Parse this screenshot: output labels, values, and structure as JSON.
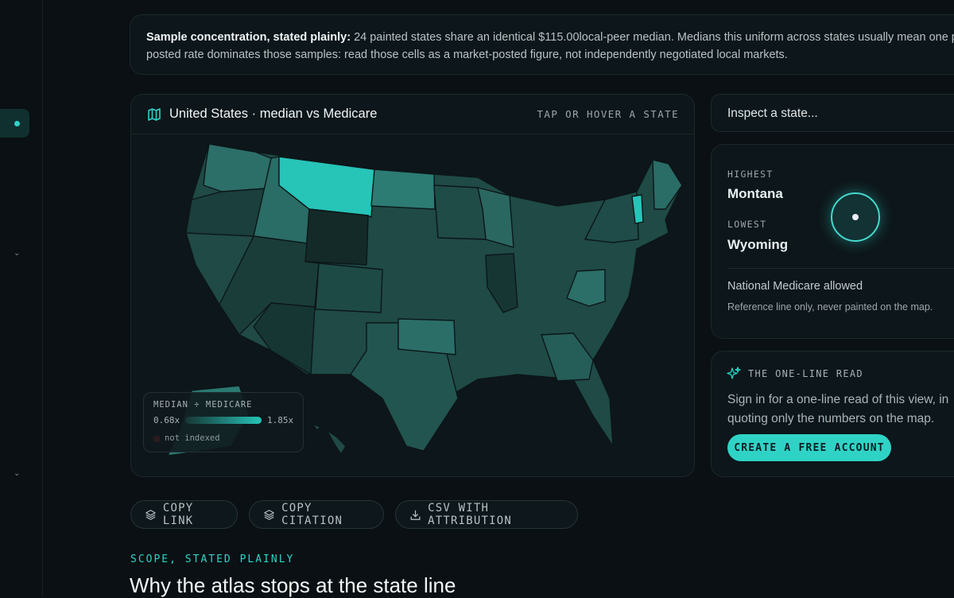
{
  "banner": {
    "lead": "Sample concentration, stated plainly:",
    "lines": [
      "24 painted states share an identical $115.00local-peer median. Medians this uniform across states usually mean one p",
      "posted rate dominates those samples: read those cells as a market-posted figure, not independently negotiated local markets."
    ]
  },
  "map": {
    "title": "United States · median vs Medicare",
    "hint": "TAP OR HOVER A STATE",
    "legend": {
      "title": "MEDIAN ÷ MEDICARE",
      "min": "0.68x",
      "max": "1.85x",
      "missing": "not indexed"
    }
  },
  "inspector": {
    "placeholder": "Inspect a state..."
  },
  "extremes": {
    "highest_label": "HIGHEST",
    "highest": "Montana",
    "lowest_label": "LOWEST",
    "lowest": "Wyoming",
    "reference_title": "National Medicare allowed",
    "reference_note": "Reference line only, never painted on the map."
  },
  "read": {
    "title": "THE ONE-LINE READ",
    "lines": [
      "Sign in for a one-line read of this view, in",
      "quoting only the numbers on the map."
    ],
    "cta": "CREATE A FREE ACCOUNT"
  },
  "actions": [
    "COPY LINK",
    "COPY CITATION",
    "CSV WITH ATTRIBUTION"
  ],
  "scope": {
    "eyebrow": "SCOPE, STATED PLAINLY",
    "heading": "Why the atlas stops at the state line"
  }
}
